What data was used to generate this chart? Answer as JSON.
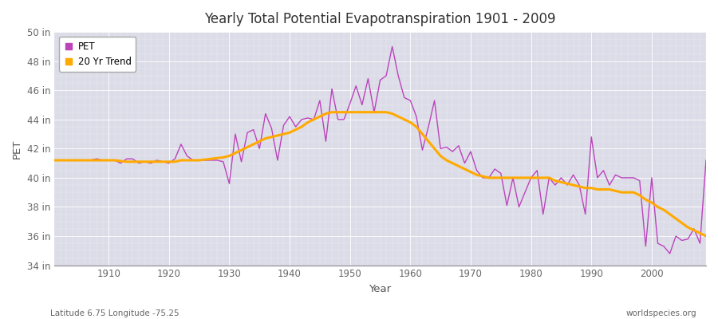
{
  "title": "Yearly Total Potential Evapotranspiration 1901 - 2009",
  "xlabel": "Year",
  "ylabel": "PET",
  "bottom_left": "Latitude 6.75 Longitude -75.25",
  "bottom_right": "worldspecies.org",
  "pet_color": "#bb44bb",
  "trend_color": "#ffaa00",
  "fig_bg": "#ffffff",
  "plot_bg": "#dcdce8",
  "ylim": [
    34,
    50
  ],
  "yticks": [
    34,
    36,
    38,
    40,
    42,
    44,
    46,
    48,
    50
  ],
  "ytick_labels": [
    "34 in",
    "36 in",
    "38 in",
    "40 in",
    "42 in",
    "44 in",
    "46 in",
    "48 in",
    "50 in"
  ],
  "xticks": [
    1910,
    1920,
    1930,
    1940,
    1950,
    1960,
    1970,
    1980,
    1990,
    2000
  ],
  "xtick_labels": [
    "1910",
    "1920",
    "1930",
    "1940",
    "1950",
    "1960",
    "1970",
    "1980",
    "1990",
    "2000"
  ],
  "xlim": [
    1901,
    2009
  ],
  "years": [
    1901,
    1902,
    1903,
    1904,
    1905,
    1906,
    1907,
    1908,
    1909,
    1910,
    1911,
    1912,
    1913,
    1914,
    1915,
    1916,
    1917,
    1918,
    1919,
    1920,
    1921,
    1922,
    1923,
    1924,
    1925,
    1926,
    1927,
    1928,
    1929,
    1930,
    1931,
    1932,
    1933,
    1934,
    1935,
    1936,
    1937,
    1938,
    1939,
    1940,
    1941,
    1942,
    1943,
    1944,
    1945,
    1946,
    1947,
    1948,
    1949,
    1950,
    1951,
    1952,
    1953,
    1954,
    1955,
    1956,
    1957,
    1958,
    1959,
    1960,
    1961,
    1962,
    1963,
    1964,
    1965,
    1966,
    1967,
    1968,
    1969,
    1970,
    1971,
    1972,
    1973,
    1974,
    1975,
    1976,
    1977,
    1978,
    1979,
    1980,
    1981,
    1982,
    1983,
    1984,
    1985,
    1986,
    1987,
    1988,
    1989,
    1990,
    1991,
    1992,
    1993,
    1994,
    1995,
    1996,
    1997,
    1998,
    1999,
    2000,
    2001,
    2002,
    2003,
    2004,
    2005,
    2006,
    2007,
    2008,
    2009
  ],
  "pet_values": [
    41.2,
    41.2,
    41.2,
    41.2,
    41.2,
    41.2,
    41.2,
    41.3,
    41.2,
    41.2,
    41.2,
    41.0,
    41.3,
    41.3,
    41.0,
    41.1,
    41.0,
    41.2,
    41.1,
    41.0,
    41.3,
    42.3,
    41.5,
    41.2,
    41.2,
    41.2,
    41.2,
    41.2,
    41.1,
    39.6,
    43.0,
    41.1,
    43.1,
    43.3,
    42.0,
    44.4,
    43.4,
    41.2,
    43.6,
    44.2,
    43.5,
    44.0,
    44.1,
    44.0,
    45.3,
    42.5,
    46.1,
    44.0,
    44.0,
    45.1,
    46.3,
    45.0,
    46.8,
    44.5,
    46.7,
    47.0,
    49.0,
    47.0,
    45.5,
    45.3,
    44.2,
    41.9,
    43.5,
    45.3,
    42.0,
    42.1,
    41.8,
    42.2,
    41.0,
    41.8,
    40.5,
    40.0,
    40.0,
    40.6,
    40.3,
    38.1,
    40.0,
    38.0,
    39.0,
    40.0,
    40.5,
    37.5,
    40.0,
    39.5,
    40.0,
    39.5,
    40.2,
    39.5,
    37.5,
    42.8,
    40.0,
    40.5,
    39.5,
    40.2,
    40.0,
    40.0,
    40.0,
    39.8,
    35.3,
    40.0,
    35.5,
    35.3,
    34.8,
    36.0,
    35.7,
    35.8,
    36.5,
    35.5,
    41.2
  ],
  "trend_years": [
    1901,
    1902,
    1903,
    1904,
    1905,
    1906,
    1907,
    1908,
    1909,
    1910,
    1911,
    1912,
    1913,
    1914,
    1915,
    1916,
    1917,
    1918,
    1919,
    1920,
    1921,
    1922,
    1923,
    1924,
    1925,
    1926,
    1927,
    1928,
    1929,
    1930,
    1931,
    1932,
    1933,
    1934,
    1935,
    1936,
    1937,
    1938,
    1939,
    1940,
    1941,
    1942,
    1943,
    1944,
    1945,
    1946,
    1947,
    1948,
    1949,
    1950,
    1951,
    1952,
    1953,
    1954,
    1955,
    1956,
    1957,
    1958,
    1959,
    1960,
    1961,
    1962,
    1963,
    1964,
    1965,
    1966,
    1967,
    1968,
    1969,
    1970,
    1971,
    1972,
    1973,
    1974,
    1975,
    1976,
    1977,
    1978,
    1979,
    1980,
    1981,
    1982,
    1983,
    1984,
    1985,
    1986,
    1987,
    1988,
    1989,
    1990,
    1991,
    1992,
    1993,
    1994,
    1995,
    1996,
    1997,
    1998,
    1999,
    2000,
    2001,
    2002,
    2003,
    2004,
    2005,
    2006,
    2007,
    2008,
    2009
  ],
  "trend_values": [
    41.2,
    41.2,
    41.2,
    41.2,
    41.2,
    41.2,
    41.2,
    41.2,
    41.2,
    41.2,
    41.2,
    41.15,
    41.1,
    41.1,
    41.1,
    41.1,
    41.1,
    41.1,
    41.1,
    41.1,
    41.1,
    41.2,
    41.2,
    41.2,
    41.2,
    41.25,
    41.3,
    41.35,
    41.4,
    41.5,
    41.7,
    41.9,
    42.1,
    42.3,
    42.5,
    42.7,
    42.8,
    42.9,
    43.0,
    43.1,
    43.3,
    43.5,
    43.8,
    44.0,
    44.2,
    44.4,
    44.5,
    44.5,
    44.5,
    44.5,
    44.5,
    44.5,
    44.5,
    44.5,
    44.5,
    44.5,
    44.4,
    44.2,
    44.0,
    43.8,
    43.5,
    43.0,
    42.5,
    42.0,
    41.5,
    41.2,
    41.0,
    40.8,
    40.6,
    40.4,
    40.2,
    40.1,
    40.0,
    40.0,
    40.0,
    40.0,
    40.0,
    40.0,
    40.0,
    40.0,
    40.0,
    40.0,
    40.0,
    39.8,
    39.7,
    39.6,
    39.5,
    39.4,
    39.3,
    39.3,
    39.2,
    39.2,
    39.2,
    39.1,
    39.0,
    39.0,
    39.0,
    38.8,
    38.5,
    38.3,
    38.0,
    37.8,
    37.5,
    37.2,
    36.9,
    36.6,
    36.4,
    36.2,
    36.0
  ]
}
